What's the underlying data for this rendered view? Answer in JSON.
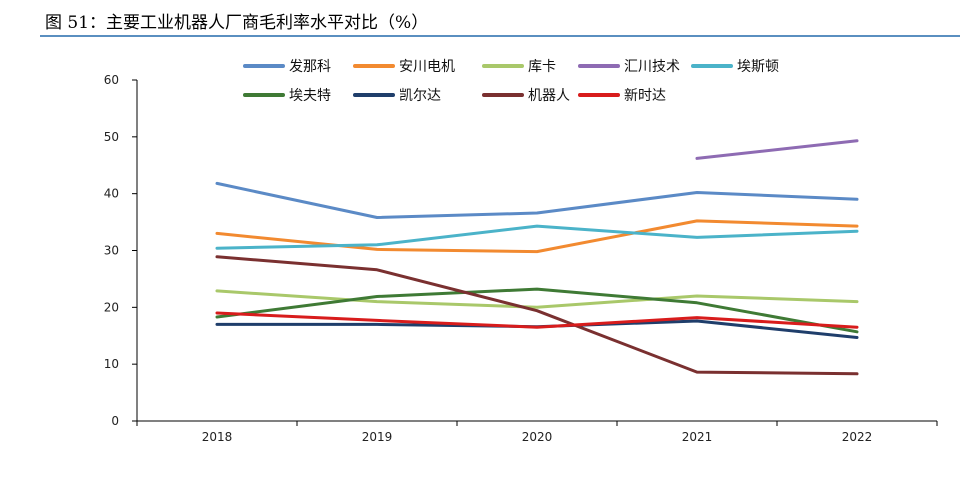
{
  "figure": {
    "title": "图 51：主要工业机器人厂商毛利率水平对比（%）"
  },
  "chart_data": {
    "type": "line",
    "title": "",
    "xlabel": "",
    "ylabel": "",
    "categories": [
      "2018",
      "2019",
      "2020",
      "2021",
      "2022"
    ],
    "ylim": [
      0,
      60
    ],
    "yticks": [
      0,
      10,
      20,
      30,
      40,
      50,
      60
    ],
    "grid": false,
    "legend_position": "top",
    "series": [
      {
        "name": "发那科",
        "color": "#5b8ac6",
        "values": [
          41.8,
          35.8,
          36.6,
          40.2,
          39.0
        ]
      },
      {
        "name": "安川电机",
        "color": "#f28a30",
        "values": [
          33.0,
          30.2,
          29.8,
          35.2,
          34.3
        ]
      },
      {
        "name": "库卡",
        "color": "#a9c86a",
        "values": [
          22.9,
          21.0,
          20.0,
          22.0,
          21.0
        ]
      },
      {
        "name": "汇川技术",
        "color": "#8e6bb3",
        "values": [
          null,
          null,
          null,
          46.2,
          49.3
        ]
      },
      {
        "name": "埃斯顿",
        "color": "#4bb3c9",
        "values": [
          30.4,
          31.0,
          34.3,
          32.3,
          33.4
        ]
      },
      {
        "name": "埃夫特",
        "color": "#3f7a35",
        "values": [
          18.3,
          21.9,
          23.2,
          20.8,
          15.7
        ]
      },
      {
        "name": "凯尔达",
        "color": "#1f3e6b",
        "values": [
          17.0,
          17.0,
          16.6,
          17.6,
          14.7
        ]
      },
      {
        "name": "机器人",
        "color": "#7a3030",
        "values": [
          28.9,
          26.6,
          19.4,
          8.6,
          8.3
        ]
      },
      {
        "name": "新时达",
        "color": "#d81c1c",
        "values": [
          19.0,
          17.7,
          16.5,
          18.2,
          16.5
        ]
      }
    ]
  }
}
